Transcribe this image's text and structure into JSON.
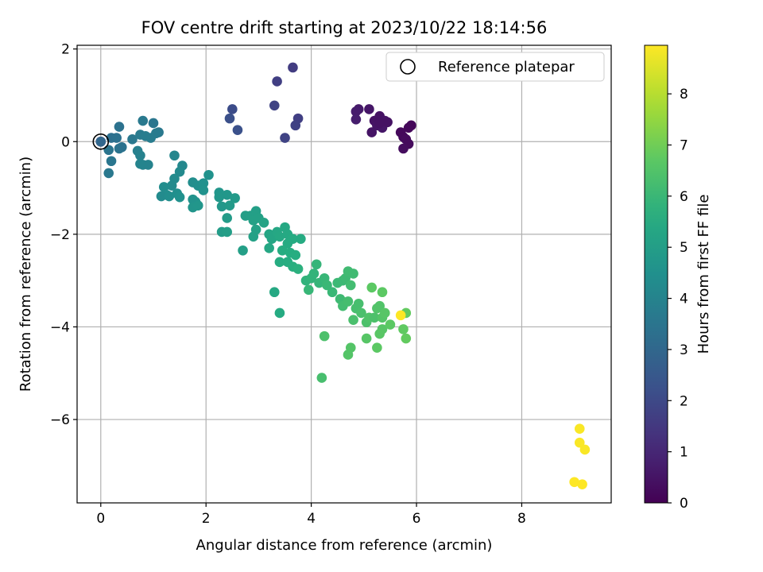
{
  "chart_data": {
    "type": "scatter",
    "title": "FOV centre drift starting at 2023/10/22 18:14:56",
    "xlabel": "Angular distance from reference (arcmin)",
    "ylabel": "Rotation from reference (arcmin)",
    "xlim": [
      -0.45,
      9.7
    ],
    "ylim": [
      -7.8,
      2.08
    ],
    "xticks": [
      0,
      2,
      4,
      6,
      8
    ],
    "yticks": [
      2,
      0,
      -2,
      -4,
      -6
    ],
    "grid": true,
    "legend": {
      "placement": "top-right",
      "entries": [
        "Reference platepar"
      ]
    },
    "reference_point": {
      "x": 0,
      "y": 0
    },
    "colorbar": {
      "label": "Hours from first FF file",
      "range": [
        0,
        8.95
      ],
      "ticks": [
        0,
        1,
        2,
        3,
        4,
        5,
        6,
        7,
        8
      ],
      "colormap": "viridis"
    },
    "points": [
      [
        0.0,
        0.0,
        0.0
      ],
      [
        5.2,
        0.45,
        0.45
      ],
      [
        5.3,
        0.55,
        0.45
      ],
      [
        5.4,
        0.45,
        0.5
      ],
      [
        5.25,
        0.35,
        0.5
      ],
      [
        5.35,
        0.3,
        0.55
      ],
      [
        5.15,
        0.2,
        0.5
      ],
      [
        5.1,
        0.7,
        0.55
      ],
      [
        4.9,
        0.7,
        0.65
      ],
      [
        4.85,
        0.65,
        0.7
      ],
      [
        4.85,
        0.48,
        0.75
      ],
      [
        5.45,
        0.42,
        0.45
      ],
      [
        5.9,
        0.35,
        0.15
      ],
      [
        5.85,
        0.3,
        0.15
      ],
      [
        5.7,
        0.2,
        0.2
      ],
      [
        5.75,
        0.1,
        0.2
      ],
      [
        5.8,
        0.05,
        0.25
      ],
      [
        5.85,
        -0.05,
        0.25
      ],
      [
        5.75,
        -0.15,
        0.3
      ],
      [
        5.3,
        0.4,
        0.45
      ],
      [
        3.65,
        1.6,
        1.6
      ],
      [
        3.35,
        1.3,
        1.7
      ],
      [
        3.3,
        0.78,
        1.8
      ],
      [
        3.75,
        0.5,
        1.7
      ],
      [
        3.7,
        0.35,
        1.75
      ],
      [
        3.5,
        0.08,
        1.8
      ],
      [
        2.5,
        0.7,
        2.1
      ],
      [
        2.45,
        0.5,
        2.2
      ],
      [
        2.6,
        0.25,
        2.25
      ],
      [
        0.0,
        0.0,
        3.0
      ],
      [
        0.2,
        0.08,
        3.3
      ],
      [
        0.3,
        0.08,
        3.35
      ],
      [
        0.35,
        0.32,
        3.4
      ],
      [
        0.15,
        -0.18,
        3.5
      ],
      [
        0.2,
        -0.42,
        3.55
      ],
      [
        0.15,
        -0.68,
        3.6
      ],
      [
        0.35,
        -0.15,
        3.45
      ],
      [
        0.4,
        -0.12,
        3.4
      ],
      [
        0.6,
        0.05,
        3.6
      ],
      [
        0.75,
        0.15,
        3.7
      ],
      [
        0.8,
        0.45,
        3.65
      ],
      [
        1.0,
        0.4,
        3.55
      ],
      [
        1.1,
        0.2,
        3.6
      ],
      [
        1.05,
        0.18,
        3.7
      ],
      [
        0.95,
        0.08,
        3.75
      ],
      [
        0.85,
        0.12,
        3.8
      ],
      [
        0.7,
        -0.2,
        3.9
      ],
      [
        0.75,
        -0.3,
        3.95
      ],
      [
        0.8,
        -0.5,
        4.0
      ],
      [
        0.9,
        -0.5,
        4.0
      ],
      [
        0.75,
        -0.48,
        4.05
      ],
      [
        1.4,
        -0.3,
        4.1
      ],
      [
        1.55,
        -0.52,
        4.2
      ],
      [
        1.5,
        -0.65,
        4.25
      ],
      [
        1.4,
        -0.8,
        4.3
      ],
      [
        1.35,
        -0.95,
        4.3
      ],
      [
        1.2,
        -0.98,
        4.35
      ],
      [
        1.25,
        -1.15,
        4.4
      ],
      [
        1.15,
        -1.18,
        4.3
      ],
      [
        1.3,
        -1.18,
        4.4
      ],
      [
        1.45,
        -1.12,
        4.45
      ],
      [
        1.5,
        -1.2,
        4.5
      ],
      [
        1.75,
        -0.88,
        4.4
      ],
      [
        1.85,
        -0.95,
        4.45
      ],
      [
        1.95,
        -0.9,
        4.5
      ],
      [
        2.05,
        -0.72,
        4.55
      ],
      [
        1.95,
        -1.05,
        4.55
      ],
      [
        1.75,
        -1.25,
        4.6
      ],
      [
        1.8,
        -1.3,
        4.6
      ],
      [
        1.75,
        -1.42,
        4.65
      ],
      [
        1.85,
        -1.38,
        4.7
      ],
      [
        2.25,
        -1.1,
        4.7
      ],
      [
        2.25,
        -1.2,
        4.75
      ],
      [
        2.4,
        -1.15,
        4.75
      ],
      [
        2.3,
        -1.4,
        4.8
      ],
      [
        2.45,
        -1.38,
        4.85
      ],
      [
        2.55,
        -1.22,
        4.85
      ],
      [
        2.4,
        -1.65,
        4.9
      ],
      [
        2.3,
        -1.95,
        4.95
      ],
      [
        2.4,
        -1.95,
        5.0
      ],
      [
        2.7,
        -2.35,
        5.05
      ],
      [
        2.75,
        -1.6,
        5.0
      ],
      [
        2.85,
        -1.6,
        5.05
      ],
      [
        2.9,
        -1.7,
        5.1
      ],
      [
        2.95,
        -1.5,
        5.05
      ],
      [
        3.0,
        -1.65,
        5.1
      ],
      [
        2.95,
        -1.9,
        5.15
      ],
      [
        2.9,
        -2.05,
        5.15
      ],
      [
        3.1,
        -1.75,
        5.2
      ],
      [
        3.2,
        -2.0,
        5.3
      ],
      [
        3.25,
        -2.1,
        5.3
      ],
      [
        3.2,
        -2.3,
        5.35
      ],
      [
        3.35,
        -1.95,
        5.35
      ],
      [
        3.4,
        -2.05,
        5.4
      ],
      [
        3.5,
        -1.85,
        5.4
      ],
      [
        3.55,
        -2.0,
        5.45
      ],
      [
        3.65,
        -2.1,
        5.5
      ],
      [
        3.8,
        -2.1,
        5.5
      ],
      [
        3.55,
        -2.2,
        5.5
      ],
      [
        3.45,
        -2.35,
        5.55
      ],
      [
        3.6,
        -2.4,
        5.6
      ],
      [
        3.7,
        -2.45,
        5.6
      ],
      [
        3.4,
        -2.6,
        5.55
      ],
      [
        3.55,
        -2.6,
        5.6
      ],
      [
        3.65,
        -2.7,
        5.65
      ],
      [
        3.75,
        -2.75,
        5.7
      ],
      [
        3.3,
        -3.25,
        5.4
      ],
      [
        3.4,
        -3.7,
        5.5
      ],
      [
        3.9,
        -3.0,
        5.8
      ],
      [
        4.0,
        -2.95,
        5.85
      ],
      [
        4.05,
        -2.85,
        5.85
      ],
      [
        4.1,
        -2.65,
        5.9
      ],
      [
        4.15,
        -3.05,
        5.9
      ],
      [
        4.25,
        -2.95,
        5.95
      ],
      [
        4.3,
        -3.1,
        6.0
      ],
      [
        4.4,
        -3.25,
        6.0
      ],
      [
        3.95,
        -3.2,
        5.95
      ],
      [
        4.5,
        -3.05,
        6.05
      ],
      [
        4.6,
        -3.0,
        6.05
      ],
      [
        4.55,
        -3.4,
        6.1
      ],
      [
        4.65,
        -2.95,
        6.1
      ],
      [
        4.7,
        -2.8,
        6.15
      ],
      [
        4.8,
        -2.85,
        6.15
      ],
      [
        4.75,
        -3.1,
        6.2
      ],
      [
        4.6,
        -3.55,
        6.2
      ],
      [
        4.7,
        -3.45,
        6.25
      ],
      [
        4.85,
        -3.6,
        6.3
      ],
      [
        4.9,
        -3.5,
        6.3
      ],
      [
        4.95,
        -3.7,
        6.35
      ],
      [
        4.8,
        -3.85,
        6.35
      ],
      [
        5.05,
        -3.9,
        6.4
      ],
      [
        5.1,
        -3.8,
        6.45
      ],
      [
        5.2,
        -3.8,
        6.4
      ],
      [
        5.25,
        -3.6,
        6.5
      ],
      [
        5.3,
        -3.55,
        6.5
      ],
      [
        5.35,
        -3.8,
        6.55
      ],
      [
        5.4,
        -3.7,
        6.6
      ],
      [
        5.35,
        -4.05,
        6.6
      ],
      [
        5.3,
        -4.15,
        6.65
      ],
      [
        5.25,
        -4.45,
        6.7
      ],
      [
        5.05,
        -4.25,
        6.6
      ],
      [
        4.75,
        -4.45,
        6.55
      ],
      [
        4.7,
        -4.6,
        6.55
      ],
      [
        4.2,
        -5.1,
        6.3
      ],
      [
        4.25,
        -4.2,
        6.4
      ],
      [
        5.5,
        -3.95,
        6.7
      ],
      [
        5.75,
        -4.05,
        6.75
      ],
      [
        5.8,
        -4.25,
        6.8
      ],
      [
        5.8,
        -3.7,
        6.8
      ],
      [
        5.35,
        -3.25,
        6.7
      ],
      [
        5.15,
        -3.15,
        6.7
      ],
      [
        5.7,
        -3.75,
        8.95
      ],
      [
        9.1,
        -6.2,
        8.9
      ],
      [
        9.1,
        -6.5,
        8.9
      ],
      [
        9.2,
        -6.65,
        8.9
      ],
      [
        9.0,
        -7.35,
        8.95
      ],
      [
        9.15,
        -7.4,
        8.95
      ]
    ]
  }
}
